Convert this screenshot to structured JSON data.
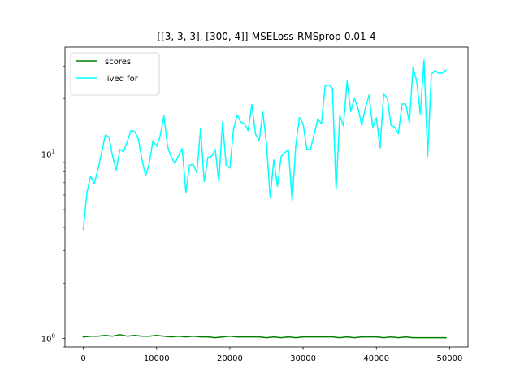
{
  "chart_data": {
    "type": "line",
    "title": "[[3, 3, 3], [300, 4]]-MSELoss-RMSprop-0.01-4",
    "xlabel": "",
    "ylabel": "",
    "yscale": "log",
    "xlim": [
      -2500,
      52500
    ],
    "ylim": [
      0.9,
      38
    ],
    "grid": false,
    "legend_position": "top-left",
    "xticks": [
      0,
      10000,
      20000,
      30000,
      40000,
      50000
    ],
    "xtick_labels": [
      "0",
      "10000",
      "20000",
      "30000",
      "40000",
      "50000"
    ],
    "yticks": [
      1,
      10
    ],
    "ytick_labels": [
      "10^0",
      "10^1"
    ],
    "series": [
      {
        "name": "scores",
        "color": "#008000",
        "x": [
          0,
          1000,
          2000,
          3000,
          4000,
          5000,
          6000,
          7000,
          8000,
          9000,
          10000,
          11000,
          12000,
          13000,
          14000,
          15000,
          16000,
          17000,
          18000,
          19000,
          20000,
          21000,
          22000,
          23000,
          24000,
          25000,
          26000,
          27000,
          28000,
          29000,
          30000,
          31000,
          32000,
          33000,
          34000,
          35000,
          36000,
          37000,
          38000,
          39000,
          40000,
          41000,
          42000,
          43000,
          44000,
          45000,
          46000,
          47000,
          48000,
          49000,
          49500
        ],
        "y": [
          1.02,
          1.03,
          1.03,
          1.04,
          1.03,
          1.05,
          1.03,
          1.04,
          1.03,
          1.03,
          1.04,
          1.03,
          1.02,
          1.03,
          1.02,
          1.03,
          1.02,
          1.02,
          1.01,
          1.02,
          1.03,
          1.02,
          1.02,
          1.02,
          1.02,
          1.01,
          1.02,
          1.01,
          1.02,
          1.01,
          1.02,
          1.02,
          1.02,
          1.02,
          1.02,
          1.01,
          1.02,
          1.01,
          1.02,
          1.02,
          1.02,
          1.01,
          1.02,
          1.01,
          1.02,
          1.01,
          1.01,
          1.01,
          1.01,
          1.01,
          1.01
        ]
      },
      {
        "name": "lived for",
        "color": "#00ffff",
        "x": [
          0,
          500,
          1000,
          1500,
          2000,
          2500,
          3000,
          3500,
          4000,
          4500,
          5000,
          5500,
          6000,
          6500,
          7000,
          7500,
          8000,
          8500,
          9000,
          9500,
          10000,
          10500,
          11000,
          11500,
          12000,
          12500,
          13000,
          13500,
          14000,
          14500,
          15000,
          15500,
          16000,
          16500,
          17000,
          17500,
          18000,
          18500,
          19000,
          19500,
          20000,
          20500,
          21000,
          21500,
          22000,
          22500,
          23000,
          23500,
          24000,
          24500,
          25000,
          25500,
          26000,
          26500,
          27000,
          27500,
          28000,
          28500,
          29000,
          29500,
          30000,
          30500,
          31000,
          31500,
          32000,
          32500,
          33000,
          33500,
          34000,
          34500,
          35000,
          35500,
          36000,
          36500,
          37000,
          37500,
          38000,
          38500,
          39000,
          39500,
          40000,
          40500,
          41000,
          41500,
          42000,
          42500,
          43000,
          43500,
          44000,
          44500,
          45000,
          45500,
          46000,
          46500,
          47000,
          47500,
          48000,
          48500,
          49000,
          49500
        ],
        "y": [
          3.9,
          6.2,
          7.6,
          6.9,
          8.3,
          10.2,
          12.7,
          12.4,
          9.7,
          8.2,
          10.6,
          10.3,
          11.7,
          13.4,
          13.3,
          12.1,
          9.4,
          7.6,
          8.9,
          11.8,
          11.0,
          12.6,
          16.1,
          11.0,
          9.6,
          8.9,
          9.8,
          10.7,
          6.2,
          8.7,
          8.8,
          7.9,
          13.7,
          7.1,
          9.6,
          9.7,
          10.6,
          7.1,
          14.9,
          8.7,
          8.4,
          13.6,
          16.3,
          14.9,
          14.6,
          13.4,
          18.6,
          12.8,
          11.8,
          16.9,
          11.4,
          5.8,
          9.3,
          6.7,
          9.7,
          10.2,
          10.5,
          5.6,
          11.1,
          15.8,
          14.6,
          10.6,
          10.6,
          12.8,
          15.5,
          14.6,
          23.4,
          23.7,
          22.8,
          6.4,
          16.2,
          14.2,
          24.9,
          17.0,
          20.1,
          17.7,
          14.3,
          17.8,
          20.9,
          14.0,
          15.7,
          10.8,
          21.1,
          20.1,
          14.3,
          14.0,
          12.9,
          18.7,
          18.7,
          14.8,
          29.4,
          24.9,
          16.5,
          32.3,
          9.7,
          27.1,
          28.4,
          27.4,
          27.5,
          28.6
        ]
      }
    ]
  }
}
